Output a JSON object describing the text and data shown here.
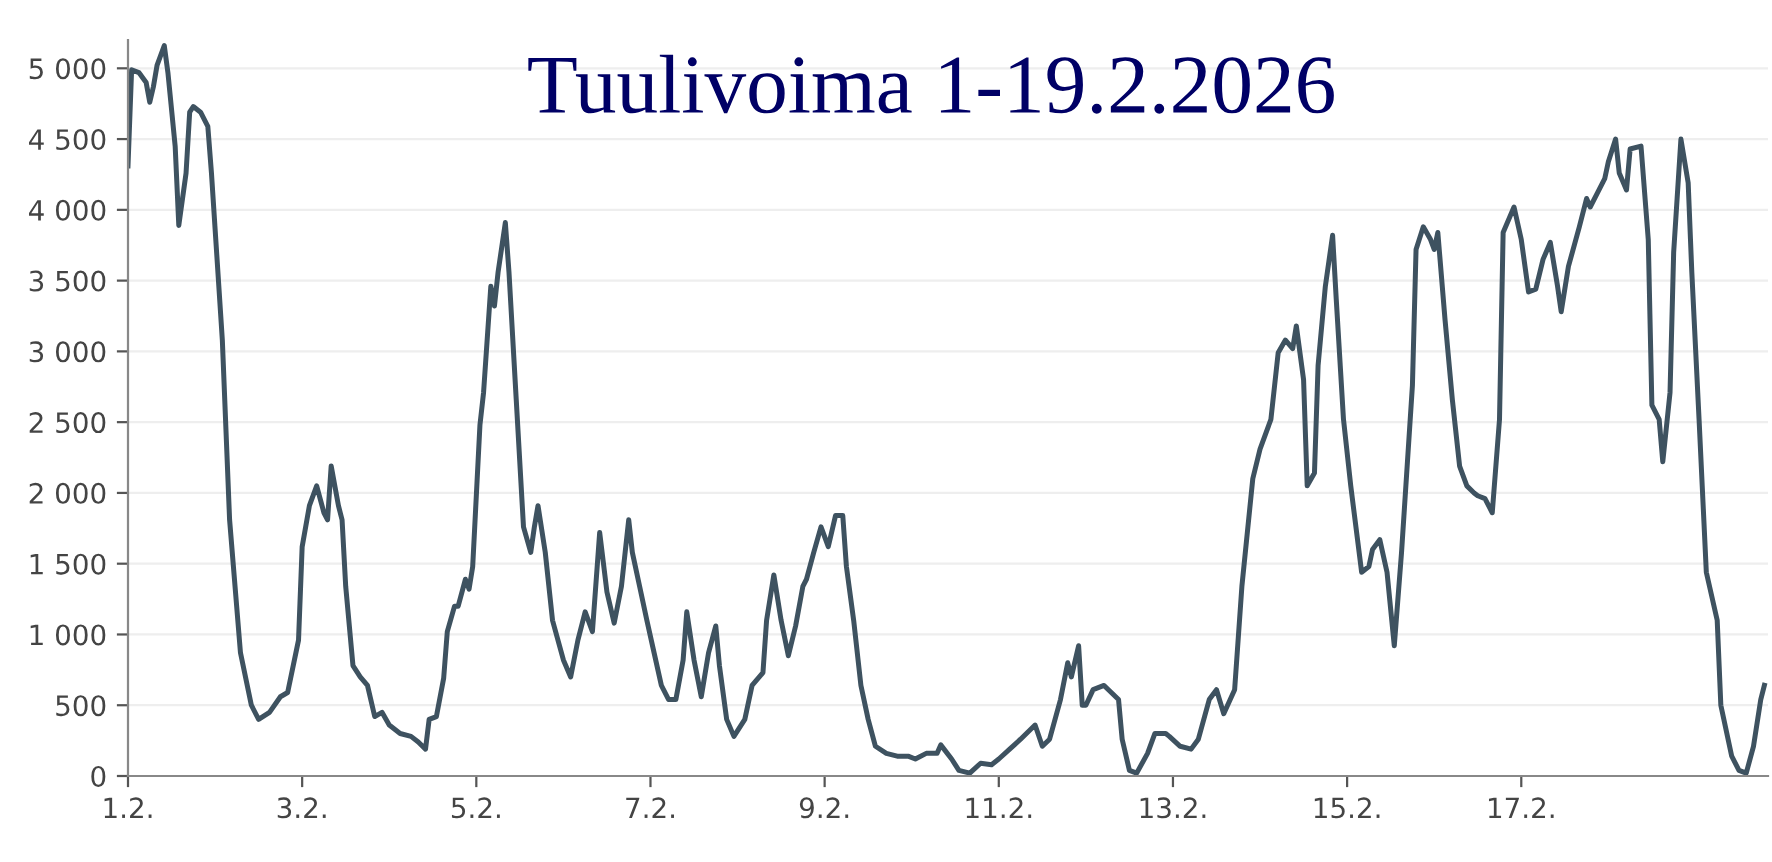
{
  "chart_data": {
    "type": "line",
    "title": "Tuulivoima 1-19.2.2026",
    "x": [
      "2026-02-01T00:00",
      "2026-02-01T01:00",
      "2026-02-01T03:00",
      "2026-02-01T05:00",
      "2026-02-01T06:00",
      "2026-02-01T07:00",
      "2026-02-01T08:00",
      "2026-02-01T10:00",
      "2026-02-01T11:00",
      "2026-02-01T13:00",
      "2026-02-01T14:00",
      "2026-02-01T16:00",
      "2026-02-01T17:00",
      "2026-02-01T18:00",
      "2026-02-01T20:00",
      "2026-02-01T22:00",
      "2026-02-01T23:00",
      "2026-02-02T02:00",
      "2026-02-02T04:00",
      "2026-02-02T07:00",
      "2026-02-02T10:00",
      "2026-02-02T12:00",
      "2026-02-02T15:00",
      "2026-02-02T18:00",
      "2026-02-02T20:00",
      "2026-02-02T23:00",
      "2026-02-03T00:00",
      "2026-02-03T02:00",
      "2026-02-03T04:00",
      "2026-02-03T06:00",
      "2026-02-03T07:00",
      "2026-02-03T08:00",
      "2026-02-03T10:00",
      "2026-02-03T11:00",
      "2026-02-03T12:00",
      "2026-02-03T14:00",
      "2026-02-03T16:00",
      "2026-02-03T18:00",
      "2026-02-03T20:00",
      "2026-02-03T22:00",
      "2026-02-04T00:00",
      "2026-02-04T03:00",
      "2026-02-04T06:00",
      "2026-02-04T08:00",
      "2026-02-04T10:00",
      "2026-02-04T11:00",
      "2026-02-04T13:00",
      "2026-02-04T15:00",
      "2026-02-04T16:00",
      "2026-02-04T18:00",
      "2026-02-04T19:00",
      "2026-02-04T21:00",
      "2026-02-04T22:00",
      "2026-02-04T23:00",
      "2026-02-05T01:00",
      "2026-02-05T02:00",
      "2026-02-05T04:00",
      "2026-02-05T05:00",
      "2026-02-05T06:00",
      "2026-02-05T08:00",
      "2026-02-05T09:00",
      "2026-02-05T11:00",
      "2026-02-05T13:00",
      "2026-02-05T15:00",
      "2026-02-05T16:00",
      "2026-02-05T17:00",
      "2026-02-05T19:00",
      "2026-02-05T21:00",
      "2026-02-06T00:00",
      "2026-02-06T02:00",
      "2026-02-06T04:00",
      "2026-02-06T06:00",
      "2026-02-06T08:00",
      "2026-02-06T10:00",
      "2026-02-06T12:00",
      "2026-02-06T14:00",
      "2026-02-06T16:00",
      "2026-02-06T18:00",
      "2026-02-06T19:00",
      "2026-02-06T21:00",
      "2026-02-06T23:00",
      "2026-02-07T01:00",
      "2026-02-07T03:00",
      "2026-02-07T05:00",
      "2026-02-07T07:00",
      "2026-02-07T09:00",
      "2026-02-07T10:00",
      "2026-02-07T12:00",
      "2026-02-07T14:00",
      "2026-02-07T16:00",
      "2026-02-07T18:00",
      "2026-02-07T19:00",
      "2026-02-07T21:00",
      "2026-02-07T23:00",
      "2026-02-08T02:00",
      "2026-02-08T04:00",
      "2026-02-08T07:00",
      "2026-02-08T08:00",
      "2026-02-08T10:00",
      "2026-02-08T12:00",
      "2026-02-08T14:00",
      "2026-02-08T16:00",
      "2026-02-08T18:00",
      "2026-02-08T19:00",
      "2026-02-08T21:00",
      "2026-02-08T23:00",
      "2026-02-09T01:00",
      "2026-02-09T03:00",
      "2026-02-09T05:00",
      "2026-02-09T06:00",
      "2026-02-09T08:00",
      "2026-02-09T10:00",
      "2026-02-09T12:00",
      "2026-02-09T14:00",
      "2026-02-09T17:00",
      "2026-02-09T20:00",
      "2026-02-09T23:00",
      "2026-02-10T01:00",
      "2026-02-10T04:00",
      "2026-02-10T07:00",
      "2026-02-10T08:00",
      "2026-02-10T11:00",
      "2026-02-10T13:00",
      "2026-02-10T16:00",
      "2026-02-10T19:00",
      "2026-02-10T22:00",
      "2026-02-11T00:00",
      "2026-02-11T03:00",
      "2026-02-11T06:00",
      "2026-02-11T10:00",
      "2026-02-11T12:00",
      "2026-02-11T14:00",
      "2026-02-11T17:00",
      "2026-02-11T19:00",
      "2026-02-11T20:00",
      "2026-02-11T22:00",
      "2026-02-11T23:00",
      "2026-02-12T00:00",
      "2026-02-12T02:00",
      "2026-02-12T05:00",
      "2026-02-12T07:00",
      "2026-02-12T09:00",
      "2026-02-12T10:00",
      "2026-02-12T12:00",
      "2026-02-12T14:00",
      "2026-02-12T17:00",
      "2026-02-12T19:00",
      "2026-02-12T22:00",
      "2026-02-12T23:00",
      "2026-02-13T02:00",
      "2026-02-13T05:00",
      "2026-02-13T07:00",
      "2026-02-13T10:00",
      "2026-02-13T12:00",
      "2026-02-13T14:00",
      "2026-02-13T17:00",
      "2026-02-13T19:00",
      "2026-02-13T22:00",
      "2026-02-14T00:00",
      "2026-02-14T03:00",
      "2026-02-14T05:00",
      "2026-02-14T07:00",
      "2026-02-14T09:00",
      "2026-02-14T10:00",
      "2026-02-14T12:00",
      "2026-02-14T13:00",
      "2026-02-14T15:00",
      "2026-02-14T16:00",
      "2026-02-14T18:00",
      "2026-02-14T20:00",
      "2026-02-14T21:00",
      "2026-02-14T23:00",
      "2026-02-15T01:00",
      "2026-02-15T04:00",
      "2026-02-15T06:00",
      "2026-02-15T07:00",
      "2026-02-15T09:00",
      "2026-02-15T11:00",
      "2026-02-15T13:00",
      "2026-02-15T15:00",
      "2026-02-15T18:00",
      "2026-02-15T19:00",
      "2026-02-15T21:00",
      "2026-02-15T23:00",
      "2026-02-16T00:00",
      "2026-02-16T01:00",
      "2026-02-16T03:00",
      "2026-02-16T05:00",
      "2026-02-16T07:00",
      "2026-02-16T09:00",
      "2026-02-16T11:00",
      "2026-02-16T12:00",
      "2026-02-16T14:00",
      "2026-02-16T16:00",
      "2026-02-16T18:00",
      "2026-02-16T19:00",
      "2026-02-16T22:00",
      "2026-02-17T00:00",
      "2026-02-17T02:00",
      "2026-02-17T04:00",
      "2026-02-17T06:00",
      "2026-02-17T08:00",
      "2026-02-17T10:00",
      "2026-02-17T11:00",
      "2026-02-17T13:00",
      "2026-02-17T16:00",
      "2026-02-17T18:00",
      "2026-02-17T19:00",
      "2026-02-17T21:00",
      "2026-02-17T23:00",
      "2026-02-18T00:00",
      "2026-02-18T02:00",
      "2026-02-18T03:00",
      "2026-02-18T05:00",
      "2026-02-18T06:00",
      "2026-02-18T09:00",
      "2026-02-18T11:00",
      "2026-02-18T12:00",
      "2026-02-18T14:00",
      "2026-02-18T15:00",
      "2026-02-18T17:00",
      "2026-02-18T18:00",
      "2026-02-18T20:00",
      "2026-02-18T22:00",
      "2026-02-18T23:00",
      "2026-02-19T01:00",
      "2026-02-19T03:00",
      "2026-02-19T06:00",
      "2026-02-19T07:00",
      "2026-02-19T10:00",
      "2026-02-19T12:00",
      "2026-02-19T14:00",
      "2026-02-19T16:00",
      "2026-02-19T18:00",
      "2026-02-19T19:00"
    ],
    "series": [
      {
        "color": "#3e5260",
        "values": [
          4310,
          4990,
          4970,
          4900,
          4760,
          4870,
          5020,
          5160,
          4970,
          4450,
          3890,
          4260,
          4690,
          4730,
          4690,
          4590,
          4260,
          3080,
          1810,
          870,
          500,
          400,
          450,
          560,
          590,
          960,
          1620,
          1910,
          2050,
          1860,
          1810,
          2190,
          1910,
          1810,
          1340,
          780,
          700,
          640,
          420,
          450,
          360,
          300,
          280,
          240,
          190,
          400,
          420,
          690,
          1020,
          1200,
          1200,
          1390,
          1320,
          1480,
          2480,
          2710,
          3460,
          3320,
          3560,
          3910,
          3560,
          2660,
          1760,
          1580,
          1760,
          1910,
          1580,
          1100,
          820,
          700,
          960,
          1160,
          1020,
          1720,
          1300,
          1080,
          1340,
          1810,
          1580,
          1340,
          1100,
          870,
          640,
          540,
          540,
          820,
          1160,
          820,
          560,
          870,
          1060,
          780,
          400,
          280,
          400,
          640,
          730,
          1100,
          1420,
          1100,
          850,
          1060,
          1340,
          1390,
          1580,
          1760,
          1620,
          1840,
          1840,
          1480,
          1100,
          640,
          400,
          210,
          160,
          140,
          140,
          120,
          160,
          160,
          220,
          120,
          40,
          20,
          90,
          80,
          120,
          190,
          260,
          360,
          210,
          260,
          540,
          800,
          700,
          920,
          500,
          500,
          610,
          640,
          590,
          540,
          260,
          40,
          20,
          160,
          300,
          300,
          280,
          210,
          190,
          260,
          540,
          610,
          440,
          610,
          1340,
          2100,
          2310,
          2520,
          2990,
          3080,
          3020,
          3180,
          2800,
          2050,
          2140,
          2900,
          3460,
          3820,
          3370,
          2520,
          2050,
          1440,
          1480,
          1600,
          1670,
          1440,
          920,
          1580,
          2760,
          3720,
          3880,
          3790,
          3720,
          3840,
          3220,
          2660,
          2190,
          2050,
          2000,
          1980,
          1960,
          1860,
          2520,
          3840,
          4020,
          3790,
          3420,
          3440,
          3650,
          3770,
          3460,
          3280,
          3600,
          3880,
          4080,
          4020,
          4120,
          4220,
          4340,
          4500,
          4260,
          4140,
          4430,
          4450,
          3790,
          2620,
          2520,
          2220,
          2710,
          3700,
          4500,
          4190,
          3560,
          2520,
          1440,
          1100,
          500,
          140,
          40,
          20,
          210,
          540,
          640
        ]
      }
    ],
    "xlim": [
      "2026-02-01T00:00",
      "2026-02-19T20:00"
    ],
    "xticks": [
      {
        "value": "2026-02-01",
        "label": "1.2."
      },
      {
        "value": "2026-02-03",
        "label": "3.2."
      },
      {
        "value": "2026-02-05",
        "label": "5.2."
      },
      {
        "value": "2026-02-07",
        "label": "7.2."
      },
      {
        "value": "2026-02-09",
        "label": "9.2."
      },
      {
        "value": "2026-02-11",
        "label": "11.2."
      },
      {
        "value": "2026-02-13",
        "label": "13.2."
      },
      {
        "value": "2026-02-15",
        "label": "15.2."
      },
      {
        "value": "2026-02-17",
        "label": "17.2."
      }
    ],
    "ylim": [
      0,
      5200
    ],
    "yticks": [
      0,
      500,
      {
        "value": 1000,
        "label": "1 000"
      },
      {
        "value": 1500,
        "label": "1 500"
      },
      {
        "value": 2000,
        "label": "2 000"
      },
      {
        "value": 2500,
        "label": "2 500"
      },
      {
        "value": 3000,
        "label": "3 000"
      },
      {
        "value": 3500,
        "label": "3 500"
      },
      {
        "value": 4000,
        "label": "4 000"
      },
      {
        "value": 4500,
        "label": "4 500"
      },
      {
        "value": 5000,
        "label": "5 000"
      }
    ],
    "grid": "y",
    "marker": "none",
    "line_style": "solid"
  }
}
